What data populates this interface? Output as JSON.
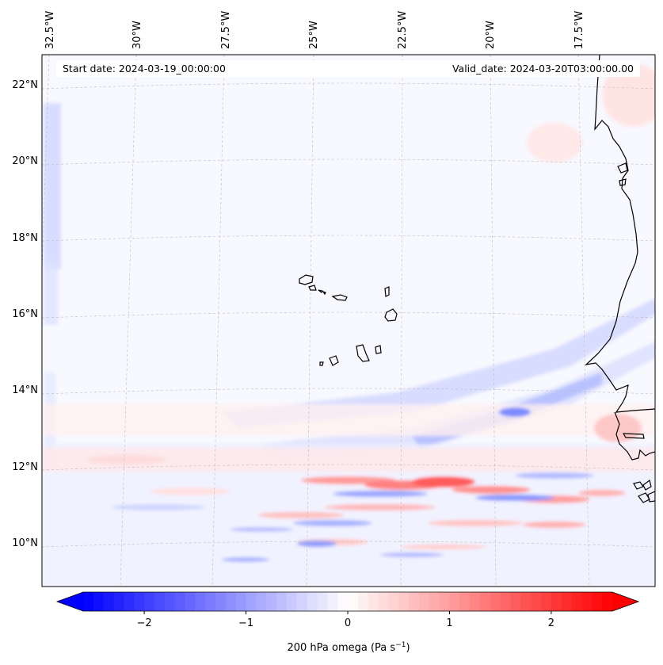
{
  "header": {
    "start_date": "Start date: 2024-03-19_00:00:00",
    "valid_date": "Valid_date: 2024-03-20T03:00:00.00"
  },
  "map": {
    "projection": "lambert-conformal",
    "lon_labels": [
      "32.5°W",
      "30°W",
      "27.5°W",
      "25°W",
      "22.5°W",
      "20°W",
      "17.5°W"
    ],
    "lat_labels": [
      "22°N",
      "20°N",
      "18°N",
      "16°N",
      "14°N",
      "12°N",
      "10°N"
    ],
    "features": [
      "Cape Verde islands",
      "West African coastline (Mauritania, Senegal, Gambia, Guinea-Bissau)"
    ]
  },
  "colorbar": {
    "ticks": [
      "−2",
      "−1",
      "0",
      "1",
      "2"
    ],
    "tick_values": [
      -2,
      -1,
      0,
      1,
      2
    ],
    "range": [
      -2.6,
      2.6
    ],
    "label_prefix": "200 hPa omega (Pa s",
    "label_sup": "−1",
    "label_suffix": ")",
    "low_color": "#0000ff",
    "mid_color": "#ffffff",
    "high_color": "#ff0000"
  }
}
